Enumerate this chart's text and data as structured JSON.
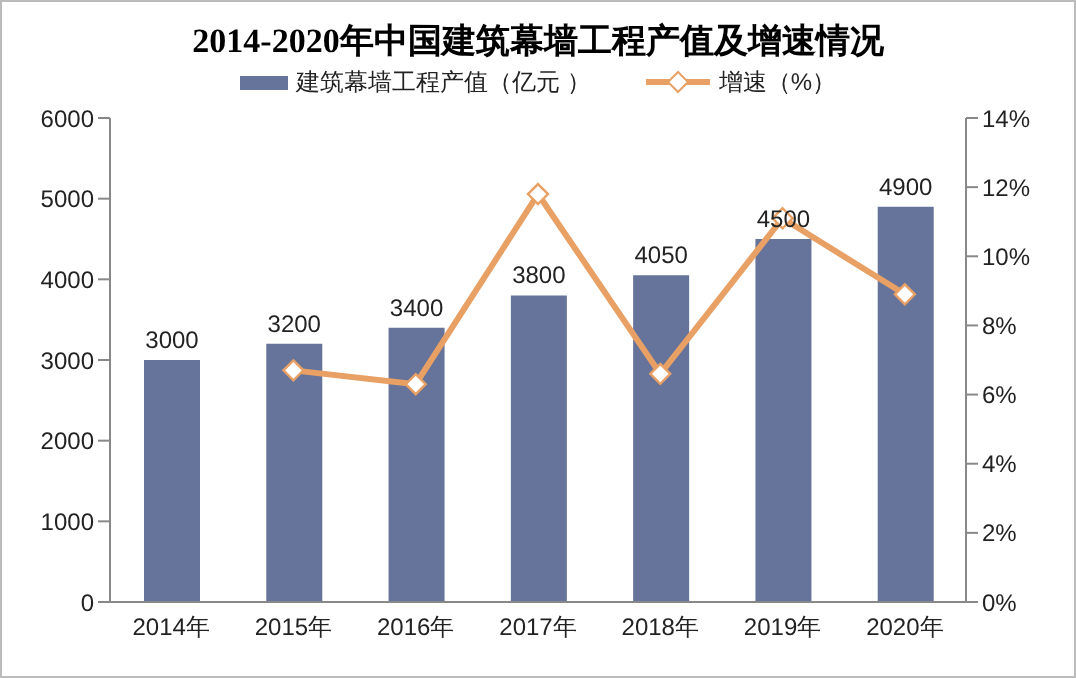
{
  "chart_data": {
    "type": "bar",
    "title": "2014-2020年中国建筑幕墙工程产值及增速情况",
    "categories": [
      "2014年",
      "2015年",
      "2016年",
      "2017年",
      "2018年",
      "2019年",
      "2020年"
    ],
    "series": [
      {
        "name": "建筑幕墙工程产值（亿元 ）",
        "color": "#66739a",
        "values": [
          3000,
          3200,
          3400,
          3800,
          4050,
          4500,
          4900
        ],
        "value_labels": [
          "3000",
          "3200",
          "3400",
          "3800",
          "4050",
          "4500",
          "4900"
        ]
      },
      {
        "name": "增速（%）",
        "type": "line",
        "axis": "y2",
        "color": "#e8a064",
        "marker": "diamond",
        "values": [
          null,
          6.7,
          6.3,
          11.8,
          6.6,
          11.1,
          8.9
        ]
      }
    ],
    "ylim": [
      0,
      6000
    ],
    "yticks": [
      0,
      1000,
      2000,
      3000,
      4000,
      5000,
      6000
    ],
    "y2lim": [
      0,
      14
    ],
    "y2ticks": [
      {
        "value": 0,
        "label": "0%"
      },
      {
        "value": 2,
        "label": "2%"
      },
      {
        "value": 4,
        "label": "4%"
      },
      {
        "value": 6,
        "label": "6%"
      },
      {
        "value": 8,
        "label": "8%"
      },
      {
        "value": 10,
        "label": "10%"
      },
      {
        "value": 12,
        "label": "12%"
      },
      {
        "value": 14,
        "label": "14%"
      }
    ],
    "grid": false,
    "legend": "top"
  }
}
